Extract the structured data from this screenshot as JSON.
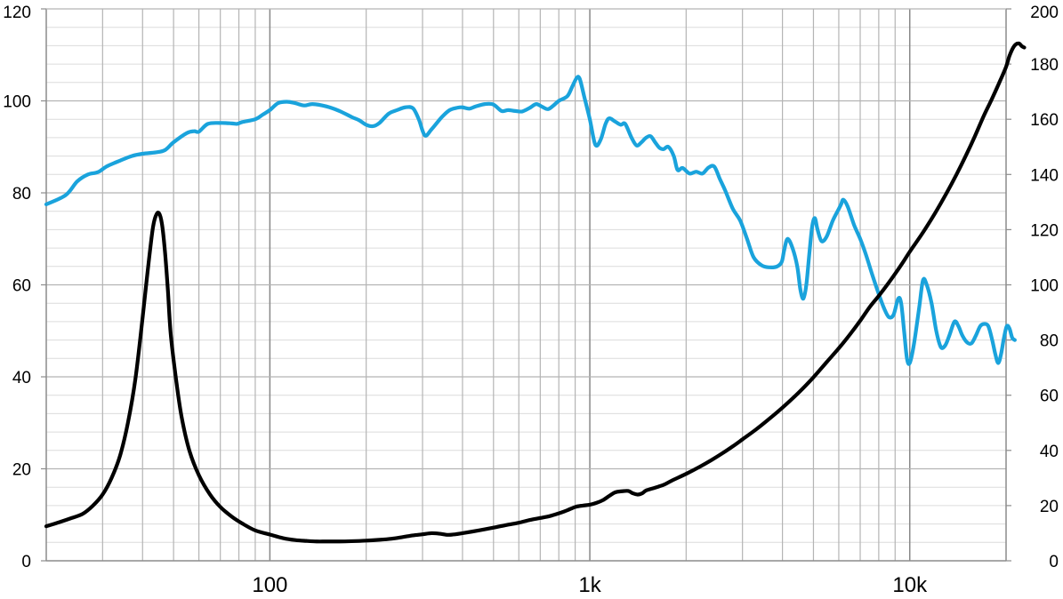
{
  "chart_data": {
    "type": "line",
    "x_scale": "log",
    "xlim": [
      20,
      20000
    ],
    "ylim_left": [
      0,
      120
    ],
    "ylim_right": [
      0,
      200
    ],
    "grid": true,
    "legend": "none",
    "x_ticks": [
      {
        "value": 100,
        "label": "100"
      },
      {
        "value": 1000,
        "label": "1k"
      },
      {
        "value": 10000,
        "label": "10k"
      }
    ],
    "y_left_ticks": [
      {
        "value": 0,
        "label": "0"
      },
      {
        "value": 20,
        "label": "20"
      },
      {
        "value": 40,
        "label": "40"
      },
      {
        "value": 60,
        "label": "60"
      },
      {
        "value": 80,
        "label": "80"
      },
      {
        "value": 100,
        "label": "100"
      },
      {
        "value": 120,
        "label": "120"
      }
    ],
    "y_right_ticks": [
      {
        "value": 0,
        "label": "0"
      },
      {
        "value": 20,
        "label": "20"
      },
      {
        "value": 40,
        "label": "40"
      },
      {
        "value": 60,
        "label": "60"
      },
      {
        "value": 80,
        "label": "80"
      },
      {
        "value": 100,
        "label": "100"
      },
      {
        "value": 120,
        "label": "120"
      },
      {
        "value": 140,
        "label": "140"
      },
      {
        "value": 160,
        "label": "160"
      },
      {
        "value": 180,
        "label": "180"
      },
      {
        "value": 200,
        "label": "200"
      }
    ],
    "series": [
      {
        "axis": "left",
        "color": "#1aa3dc",
        "points": [
          [
            20,
            77.5
          ],
          [
            23,
            79.5
          ],
          [
            25,
            82.5
          ],
          [
            27,
            84
          ],
          [
            29,
            84.5
          ],
          [
            31,
            85.8
          ],
          [
            34,
            87
          ],
          [
            37,
            88
          ],
          [
            40,
            88.5
          ],
          [
            44,
            88.8
          ],
          [
            47,
            89.3
          ],
          [
            50,
            91
          ],
          [
            55,
            93
          ],
          [
            58,
            93.4
          ],
          [
            60,
            93.3
          ],
          [
            64,
            95
          ],
          [
            70,
            95.2
          ],
          [
            76,
            95.1
          ],
          [
            79,
            95
          ],
          [
            82,
            95.4
          ],
          [
            90,
            96
          ],
          [
            95,
            97
          ],
          [
            100,
            98
          ],
          [
            106,
            99.5
          ],
          [
            113,
            99.8
          ],
          [
            120,
            99.5
          ],
          [
            128,
            99
          ],
          [
            136,
            99.3
          ],
          [
            150,
            98.8
          ],
          [
            165,
            97.8
          ],
          [
            180,
            96.5
          ],
          [
            190,
            95.8
          ],
          [
            200,
            94.8
          ],
          [
            210,
            94.5
          ],
          [
            220,
            95.2
          ],
          [
            235,
            97.2
          ],
          [
            250,
            98
          ],
          [
            265,
            98.6
          ],
          [
            280,
            98.4
          ],
          [
            292,
            96
          ],
          [
            305,
            92.5
          ],
          [
            320,
            93.8
          ],
          [
            345,
            96.5
          ],
          [
            365,
            98
          ],
          [
            385,
            98.5
          ],
          [
            400,
            98.6
          ],
          [
            420,
            98.3
          ],
          [
            440,
            98.8
          ],
          [
            470,
            99.3
          ],
          [
            500,
            99.2
          ],
          [
            530,
            97.8
          ],
          [
            555,
            98
          ],
          [
            585,
            97.8
          ],
          [
            615,
            97.7
          ],
          [
            650,
            98.5
          ],
          [
            680,
            99.3
          ],
          [
            710,
            98.7
          ],
          [
            740,
            98.2
          ],
          [
            770,
            99
          ],
          [
            800,
            100
          ],
          [
            850,
            101
          ],
          [
            880,
            103
          ],
          [
            910,
            105
          ],
          [
            930,
            104.8
          ],
          [
            960,
            101
          ],
          [
            1000,
            96
          ],
          [
            1040,
            90.5
          ],
          [
            1080,
            91.5
          ],
          [
            1120,
            95
          ],
          [
            1150,
            96.2
          ],
          [
            1200,
            95.5
          ],
          [
            1250,
            94.8
          ],
          [
            1290,
            95
          ],
          [
            1350,
            92
          ],
          [
            1400,
            90.3
          ],
          [
            1450,
            91
          ],
          [
            1500,
            92
          ],
          [
            1550,
            92.3
          ],
          [
            1600,
            91
          ],
          [
            1650,
            89.8
          ],
          [
            1700,
            89.5
          ],
          [
            1760,
            90
          ],
          [
            1830,
            88
          ],
          [
            1880,
            85
          ],
          [
            1950,
            85.4
          ],
          [
            2050,
            84.2
          ],
          [
            2150,
            84.6
          ],
          [
            2250,
            84.2
          ],
          [
            2350,
            85.5
          ],
          [
            2450,
            85.7
          ],
          [
            2550,
            83
          ],
          [
            2650,
            80.5
          ],
          [
            2800,
            76.5
          ],
          [
            2950,
            74
          ],
          [
            3100,
            70
          ],
          [
            3250,
            66
          ],
          [
            3450,
            64.2
          ],
          [
            3650,
            63.8
          ],
          [
            3850,
            64
          ],
          [
            3980,
            65
          ],
          [
            4050,
            67.5
          ],
          [
            4150,
            70
          ],
          [
            4300,
            68
          ],
          [
            4450,
            64
          ],
          [
            4550,
            59
          ],
          [
            4650,
            57
          ],
          [
            4750,
            60
          ],
          [
            4850,
            66.5
          ],
          [
            4950,
            72.5
          ],
          [
            5050,
            74.5
          ],
          [
            5150,
            72
          ],
          [
            5300,
            69.5
          ],
          [
            5500,
            70.5
          ],
          [
            5750,
            74
          ],
          [
            6000,
            76.5
          ],
          [
            6100,
            77.5
          ],
          [
            6200,
            78.5
          ],
          [
            6400,
            77
          ],
          [
            6700,
            73
          ],
          [
            7000,
            70
          ],
          [
            7300,
            66.5
          ],
          [
            7650,
            62
          ],
          [
            8000,
            58
          ],
          [
            8300,
            55
          ],
          [
            8600,
            53
          ],
          [
            8900,
            53.5
          ],
          [
            9200,
            57
          ],
          [
            9400,
            56
          ],
          [
            9600,
            50
          ],
          [
            9800,
            44
          ],
          [
            10000,
            43
          ],
          [
            10300,
            47
          ],
          [
            10700,
            55
          ],
          [
            11000,
            61
          ],
          [
            11300,
            60
          ],
          [
            11700,
            56
          ],
          [
            12100,
            50
          ],
          [
            12500,
            46.5
          ],
          [
            12900,
            46.8
          ],
          [
            13300,
            49
          ],
          [
            13800,
            52
          ],
          [
            14200,
            51
          ],
          [
            14600,
            49
          ],
          [
            15100,
            47.5
          ],
          [
            15600,
            47.3
          ],
          [
            16100,
            49
          ],
          [
            16600,
            51
          ],
          [
            17100,
            51.5
          ],
          [
            17600,
            51
          ],
          [
            18100,
            48
          ],
          [
            18500,
            45
          ],
          [
            18900,
            43
          ],
          [
            19300,
            45
          ],
          [
            19700,
            48.5
          ],
          [
            20100,
            51
          ],
          [
            20500,
            50.5
          ],
          [
            20900,
            48.5
          ],
          [
            21300,
            48
          ]
        ]
      },
      {
        "axis": "right",
        "color": "#000000",
        "points": [
          [
            20,
            12.5
          ],
          [
            22,
            14
          ],
          [
            24,
            15.5
          ],
          [
            26,
            17
          ],
          [
            28,
            20
          ],
          [
            30,
            24
          ],
          [
            32,
            30
          ],
          [
            34,
            38
          ],
          [
            36,
            50
          ],
          [
            38,
            66
          ],
          [
            40,
            88
          ],
          [
            41.5,
            105
          ],
          [
            43,
            120
          ],
          [
            44,
            125
          ],
          [
            45,
            126
          ],
          [
            46,
            122
          ],
          [
            47,
            112
          ],
          [
            48,
            98
          ],
          [
            49,
            82
          ],
          [
            51,
            65
          ],
          [
            53,
            52
          ],
          [
            56,
            40
          ],
          [
            60,
            31
          ],
          [
            65,
            24
          ],
          [
            70,
            19.5
          ],
          [
            76,
            16
          ],
          [
            82,
            13.5
          ],
          [
            90,
            11
          ],
          [
            100,
            9.5
          ],
          [
            110,
            8.2
          ],
          [
            120,
            7.5
          ],
          [
            130,
            7.2
          ],
          [
            140,
            7
          ],
          [
            150,
            7
          ],
          [
            165,
            7
          ],
          [
            180,
            7.1
          ],
          [
            200,
            7.3
          ],
          [
            220,
            7.6
          ],
          [
            240,
            8
          ],
          [
            260,
            8.6
          ],
          [
            280,
            9.2
          ],
          [
            300,
            9.6
          ],
          [
            320,
            10
          ],
          [
            340,
            9.8
          ],
          [
            360,
            9.4
          ],
          [
            380,
            9.6
          ],
          [
            400,
            10
          ],
          [
            450,
            11
          ],
          [
            500,
            12
          ],
          [
            550,
            13
          ],
          [
            600,
            13.8
          ],
          [
            650,
            14.8
          ],
          [
            700,
            15.5
          ],
          [
            750,
            16.2
          ],
          [
            800,
            17.2
          ],
          [
            850,
            18.3
          ],
          [
            900,
            19.5
          ],
          [
            950,
            20
          ],
          [
            1000,
            20.3
          ],
          [
            1050,
            21
          ],
          [
            1100,
            22
          ],
          [
            1150,
            23.5
          ],
          [
            1200,
            24.8
          ],
          [
            1260,
            25.2
          ],
          [
            1320,
            25.3
          ],
          [
            1360,
            24.5
          ],
          [
            1410,
            24
          ],
          [
            1460,
            24.5
          ],
          [
            1500,
            25.5
          ],
          [
            1600,
            26.5
          ],
          [
            1700,
            27.5
          ],
          [
            1800,
            29
          ],
          [
            2000,
            31.5
          ],
          [
            2200,
            34
          ],
          [
            2400,
            36.5
          ],
          [
            2600,
            39
          ],
          [
            2800,
            41.5
          ],
          [
            3000,
            44
          ],
          [
            3300,
            47.5
          ],
          [
            3600,
            51
          ],
          [
            4000,
            55.5
          ],
          [
            4500,
            61
          ],
          [
            5000,
            66.5
          ],
          [
            5500,
            72
          ],
          [
            6000,
            77
          ],
          [
            6500,
            82
          ],
          [
            7000,
            87
          ],
          [
            7500,
            92
          ],
          [
            8000,
            96
          ],
          [
            8500,
            100
          ],
          [
            9000,
            104
          ],
          [
            9500,
            108
          ],
          [
            10000,
            112
          ],
          [
            11000,
            119
          ],
          [
            12000,
            126
          ],
          [
            13000,
            133
          ],
          [
            14000,
            140
          ],
          [
            15000,
            147
          ],
          [
            16000,
            154
          ],
          [
            17000,
            161
          ],
          [
            18000,
            167
          ],
          [
            19000,
            173
          ],
          [
            20000,
            179
          ],
          [
            20500,
            183
          ],
          [
            21200,
            186.5
          ],
          [
            21900,
            187.5
          ],
          [
            22400,
            186.5
          ],
          [
            22800,
            186
          ]
        ]
      }
    ]
  }
}
